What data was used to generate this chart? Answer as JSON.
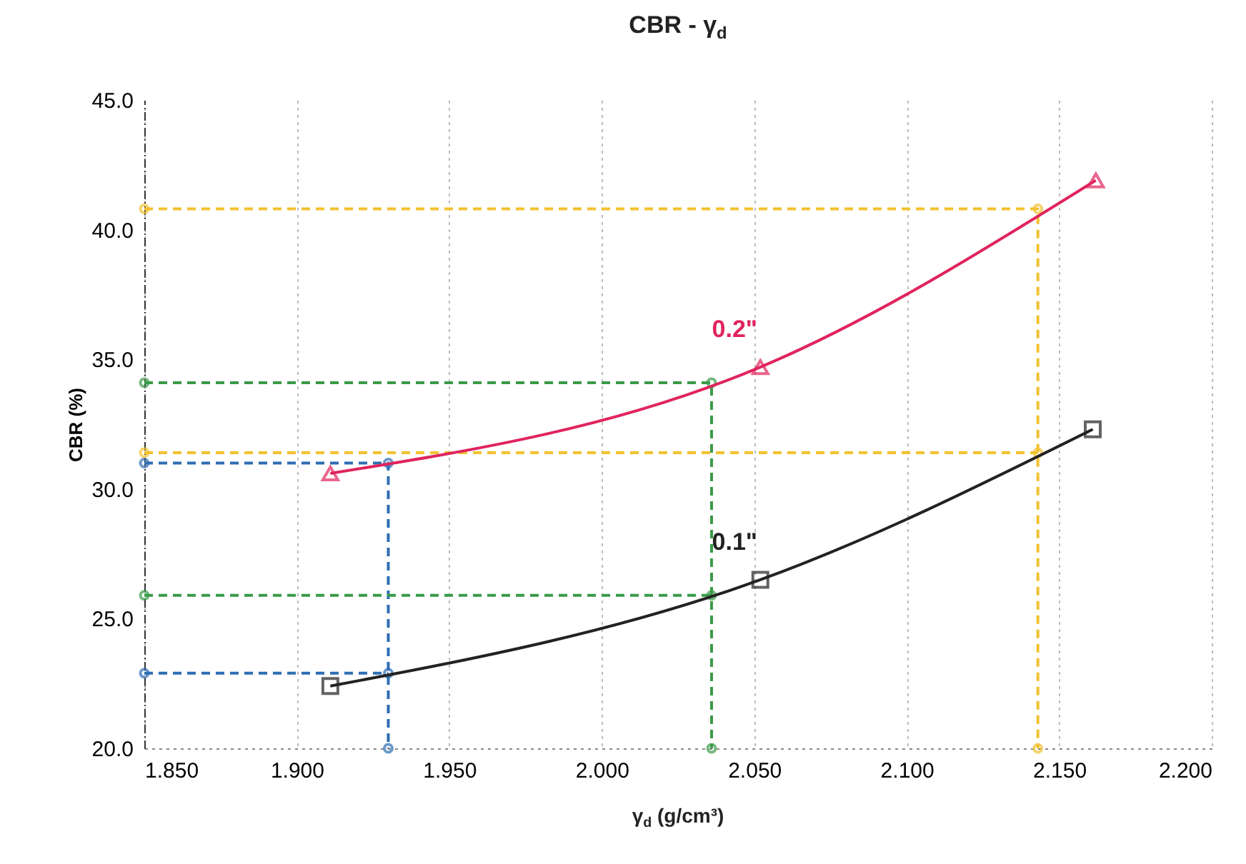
{
  "chart_data": {
    "type": "line",
    "title": "CBR - γ$_{d}$",
    "xlabel": "γ$_{d}$ (g/cm³)",
    "ylabel": "CBR (%)",
    "xlim": [
      1.85,
      2.2
    ],
    "xticks": [
      {
        "value": 1.85,
        "label": "1.850"
      },
      {
        "value": 1.9,
        "label": "1.900"
      },
      {
        "value": 1.95,
        "label": "1.950"
      },
      {
        "value": 2.0,
        "label": "2.000"
      },
      {
        "value": 2.05,
        "label": "2.050"
      },
      {
        "value": 2.1,
        "label": "2.100"
      },
      {
        "value": 2.15,
        "label": "2.150"
      },
      {
        "value": 2.2,
        "label": "2.200"
      }
    ],
    "ylim": [
      20,
      45
    ],
    "yticks": [
      {
        "value": 20,
        "label": "20.0"
      },
      {
        "value": 25,
        "label": "25.0"
      },
      {
        "value": 30,
        "label": "30.0"
      },
      {
        "value": 35,
        "label": "35.0"
      },
      {
        "value": 40,
        "label": "40.0"
      },
      {
        "value": 45,
        "label": "45.0"
      }
    ],
    "grid": "x",
    "series": [
      {
        "color": "#2e6db4",
        "x": [
          1.85,
          1.93,
          1.93
        ],
        "values": [
          31.0,
          31.0,
          20.0
        ],
        "line_style": "dashed",
        "marker": "circle"
      },
      {
        "color": "#2e6db4",
        "x": [
          1.85,
          1.93
        ],
        "values": [
          22.9,
          22.9
        ],
        "line_style": "dashed",
        "marker": "circle"
      },
      {
        "color": "#3a9a48",
        "x": [
          1.85,
          2.036,
          2.036
        ],
        "values": [
          34.1,
          34.1,
          20.0
        ],
        "line_style": "dashed",
        "marker": "circle"
      },
      {
        "color": "#3a9a48",
        "x": [
          1.85,
          2.036
        ],
        "values": [
          25.9,
          25.9
        ],
        "line_style": "dashed",
        "marker": "circle"
      },
      {
        "color": "#f2c12e",
        "x": [
          1.85,
          2.143,
          2.143
        ],
        "values": [
          40.8,
          40.8,
          20.0
        ],
        "line_style": "dashed",
        "marker": "circle"
      },
      {
        "color": "#f2c12e",
        "x": [
          1.85,
          2.143
        ],
        "values": [
          31.4,
          31.4
        ],
        "line_style": "dashed",
        "marker": "circle"
      },
      {
        "name": "0.2\"",
        "color": "#e0245e",
        "x": [
          1.911,
          2.052,
          2.162
        ],
        "values": [
          30.6,
          34.7,
          41.9
        ],
        "line_style": "solid",
        "marker": "triangle"
      },
      {
        "name": "0.1\"",
        "color": "#222222",
        "x": [
          1.911,
          2.052,
          2.161
        ],
        "values": [
          22.4,
          26.5,
          32.3
        ],
        "line_style": "solid",
        "marker": "square"
      }
    ]
  }
}
